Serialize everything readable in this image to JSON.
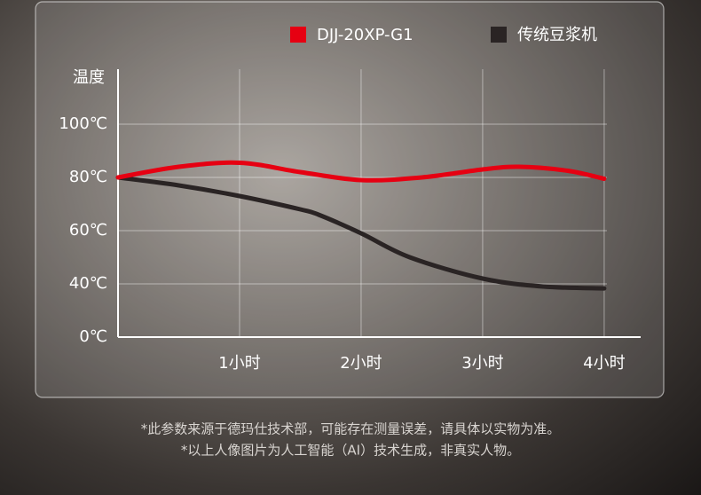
{
  "chart_data": {
    "type": "line",
    "y_label": "温度",
    "xlim": [
      0,
      4.3
    ],
    "xticks": [
      {
        "value": 1,
        "label": "1小时"
      },
      {
        "value": 2,
        "label": "2小时"
      },
      {
        "value": 3,
        "label": "3小时"
      },
      {
        "value": 4,
        "label": "4小时"
      }
    ],
    "ylim": [
      0,
      120
    ],
    "yticks": [
      {
        "value": 0,
        "label": "0℃"
      },
      {
        "value": 40,
        "label": "40℃"
      },
      {
        "value": 60,
        "label": "60℃"
      },
      {
        "value": 80,
        "label": "80℃"
      },
      {
        "value": 100,
        "label": "100℃"
      }
    ],
    "grid": true,
    "series": [
      {
        "name": "DJJ-20XP-G1",
        "color": "#e60012",
        "x": [
          0,
          0.5,
          1,
          1.5,
          2,
          2.5,
          3,
          3.3,
          3.7,
          4
        ],
        "values": [
          80,
          84,
          85.5,
          82,
          79,
          80,
          83,
          84,
          82.5,
          79.5
        ]
      },
      {
        "name": "传统豆浆机",
        "color": "#2a2424",
        "x": [
          0,
          0.5,
          1,
          1.5,
          1.65,
          2,
          2.4,
          3,
          3.5,
          4
        ],
        "values": [
          80,
          77,
          73,
          68,
          66,
          59,
          50,
          42,
          38,
          36.6
        ]
      }
    ],
    "notes": [
      "*此参数来源于德玛仕技术部，可能存在测量误差，请具体以实物为准。",
      "*以上人像图片为人工智能（AI）技术生成，非真实人物。"
    ]
  }
}
